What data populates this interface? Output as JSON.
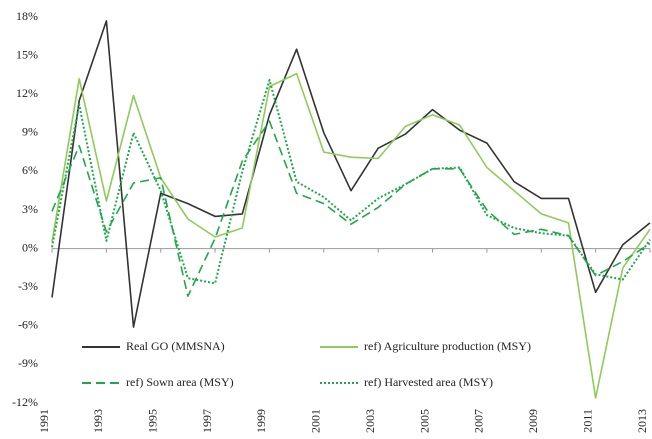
{
  "chart_data": {
    "type": "line",
    "x": [
      1991,
      1992,
      1993,
      1994,
      1995,
      1996,
      1997,
      1998,
      1999,
      2000,
      2001,
      2002,
      2003,
      2004,
      2005,
      2006,
      2007,
      2008,
      2009,
      2010,
      2011,
      2012,
      2013
    ],
    "xlim": [
      1991,
      2013
    ],
    "xticks": [
      1991,
      1993,
      1995,
      1997,
      1999,
      2001,
      2003,
      2005,
      2007,
      2009,
      2011,
      2013
    ],
    "ylim": [
      -12,
      18
    ],
    "yticks": [
      {
        "value": -12,
        "label": "-12%"
      },
      {
        "value": -9,
        "label": "-9%"
      },
      {
        "value": -6,
        "label": "-6%"
      },
      {
        "value": -3,
        "label": "-3%"
      },
      {
        "value": 0,
        "label": "0%"
      },
      {
        "value": 3,
        "label": "3%"
      },
      {
        "value": 6,
        "label": "6%"
      },
      {
        "value": 9,
        "label": "9%"
      },
      {
        "value": 12,
        "label": "12%"
      },
      {
        "value": 15,
        "label": "15%"
      },
      {
        "value": 18,
        "label": "18%"
      }
    ],
    "grid": false,
    "series": [
      {
        "name": "Real GO (MMSNA)",
        "color": "#333333",
        "dash": "solid",
        "values": [
          -3.8,
          11.5,
          17.7,
          -6.1,
          4.3,
          3.5,
          2.5,
          2.7,
          10.4,
          15.5,
          9.0,
          4.5,
          7.8,
          8.9,
          10.8,
          9.2,
          8.2,
          5.2,
          3.9,
          3.9,
          -3.4,
          0.3,
          2.0
        ]
      },
      {
        "name": "ref) Agriculture production (MSY)",
        "color": "#8fcb5a",
        "dash": "solid",
        "values": [
          0.5,
          13.2,
          3.7,
          11.9,
          5.5,
          2.3,
          0.9,
          1.6,
          12.6,
          13.6,
          7.5,
          7.1,
          7.0,
          9.5,
          10.4,
          9.6,
          6.3,
          4.5,
          2.7,
          2.0,
          -11.6,
          -1.5,
          1.5
        ]
      },
      {
        "name": "ref) Sown area (MSY)",
        "color": "#1fa84a",
        "dash": "dashed",
        "values": [
          2.9,
          8.0,
          1.3,
          5.1,
          5.5,
          -3.7,
          0.8,
          6.8,
          9.9,
          4.3,
          3.5,
          1.9,
          3.2,
          5.0,
          6.2,
          6.2,
          3.0,
          1.1,
          1.5,
          1.0,
          -2.1,
          -1.0,
          0.4
        ]
      },
      {
        "name": "ref) Harvested area (MSY)",
        "color": "#1fa84a",
        "dash": "dotted",
        "values": [
          0.1,
          11.2,
          0.6,
          9.0,
          4.5,
          -2.3,
          -2.7,
          6.0,
          13.1,
          5.2,
          4.0,
          2.2,
          3.9,
          5.0,
          6.2,
          6.3,
          2.6,
          1.6,
          1.2,
          1.0,
          -2.0,
          -2.4,
          0.7
        ]
      }
    ]
  }
}
